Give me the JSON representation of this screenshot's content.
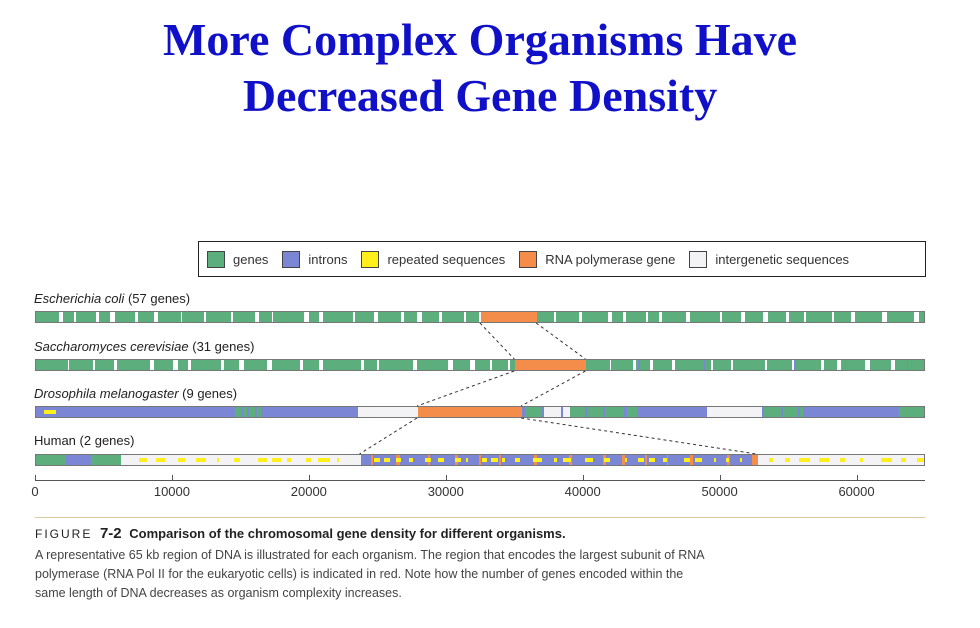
{
  "title": {
    "line1": "More Complex Organisms Have",
    "line2": "Decreased Gene Density"
  },
  "legend": [
    {
      "key": "genes",
      "label": "genes",
      "color": "#5cae7c"
    },
    {
      "key": "introns",
      "label": "introns",
      "color": "#7b86d4"
    },
    {
      "key": "repeats",
      "label": "repeated sequences",
      "color": "#ffef1a"
    },
    {
      "key": "rnapol",
      "label": "RNA polymerase gene",
      "color": "#f48c4a"
    },
    {
      "key": "intergenic",
      "label": "intergenetic sequences",
      "color": "#f3f3f5"
    }
  ],
  "organisms": [
    {
      "id": "ecoli",
      "species": "Escherichia coli",
      "count": "(57 genes)"
    },
    {
      "id": "yeast",
      "species": "Saccharomyces cerevisiae",
      "count": "(31 genes)"
    },
    {
      "id": "fly",
      "species": "Drosophila melanogaster",
      "count": "(9 genes)"
    },
    {
      "id": "human",
      "species": "Human",
      "count": "(2 genes)"
    }
  ],
  "axis": {
    "min": 0,
    "max": 65000,
    "ticks": [
      "0",
      "10000",
      "20000",
      "30000",
      "40000",
      "50000",
      "60000"
    ]
  },
  "rna_polymerase_region": {
    "ecoli": [
      32500,
      36600
    ],
    "yeast": [
      35000,
      40200
    ],
    "fly": [
      27900,
      35500
    ],
    "human": [
      23700,
      52700
    ]
  },
  "caption": {
    "figure": "FIGURE",
    "number": "7-2",
    "title": "Comparison of the chromosomal gene density for different organisms.",
    "body": "A representative 65 kb region of DNA is illustrated for each organism. The region that encodes the largest subunit of RNA polymerase (RNA Pol II for the eukaryotic cells) is indicated in red. Note how the number of genes encoded within the same length of DNA decreases as organism complexity increases."
  }
}
